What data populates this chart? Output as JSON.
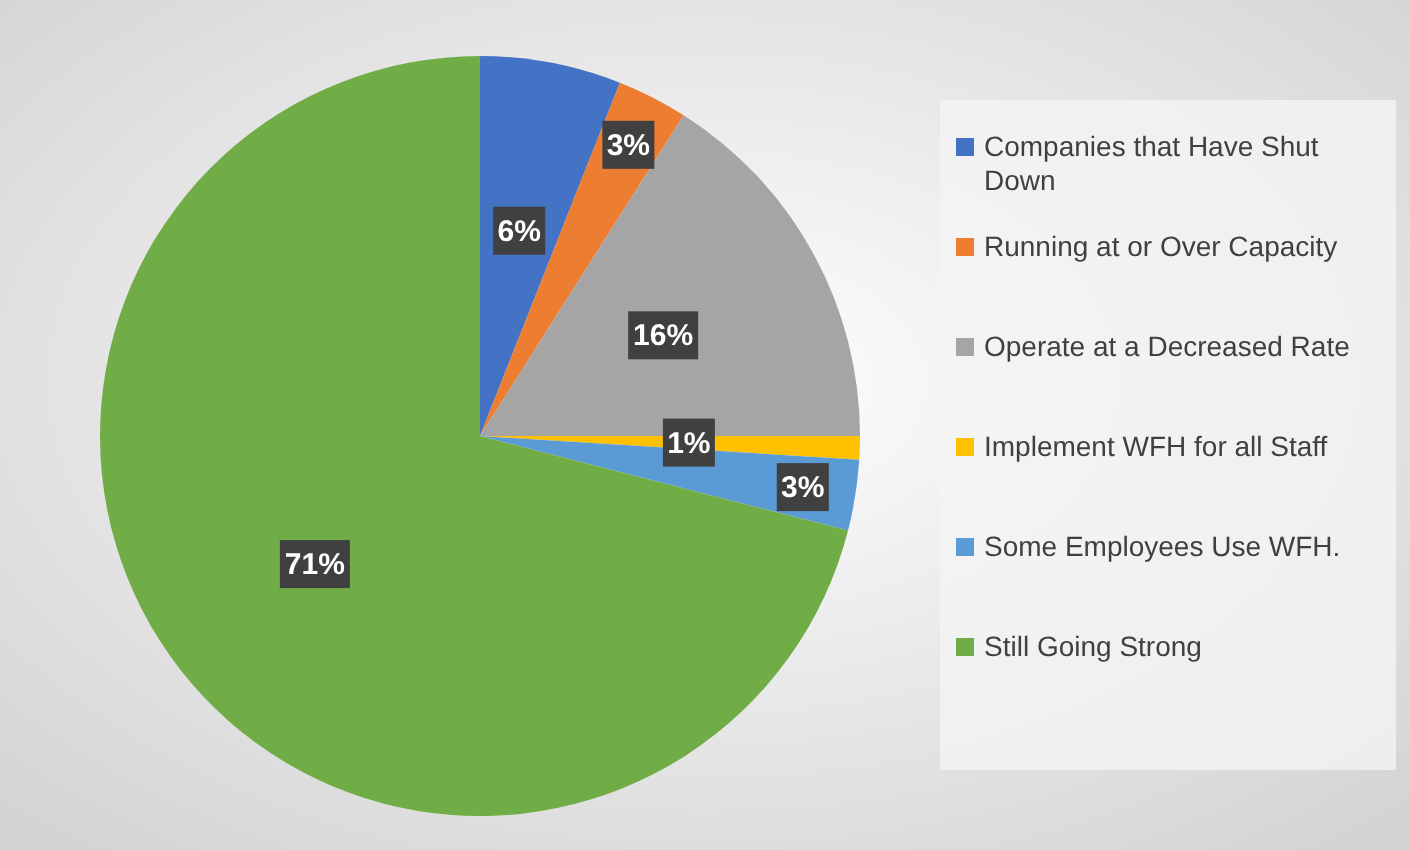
{
  "chart_data": {
    "type": "pie",
    "categories": [
      "Companies that Have Shut Down",
      "Running at or Over Capacity",
      "Operate at a Decreased Rate",
      "Implement WFH for all Staff",
      "Some Employees Use WFH.",
      "Still Going Strong"
    ],
    "values": [
      6,
      3,
      16,
      1,
      3,
      71
    ],
    "colors": [
      "#4472c4",
      "#ed7d31",
      "#a5a5a5",
      "#ffc000",
      "#5b9bd5",
      "#70ad47"
    ],
    "value_labels": [
      "6%",
      "3%",
      "16%",
      "1%",
      "3%",
      "71%"
    ],
    "legend": "right"
  }
}
